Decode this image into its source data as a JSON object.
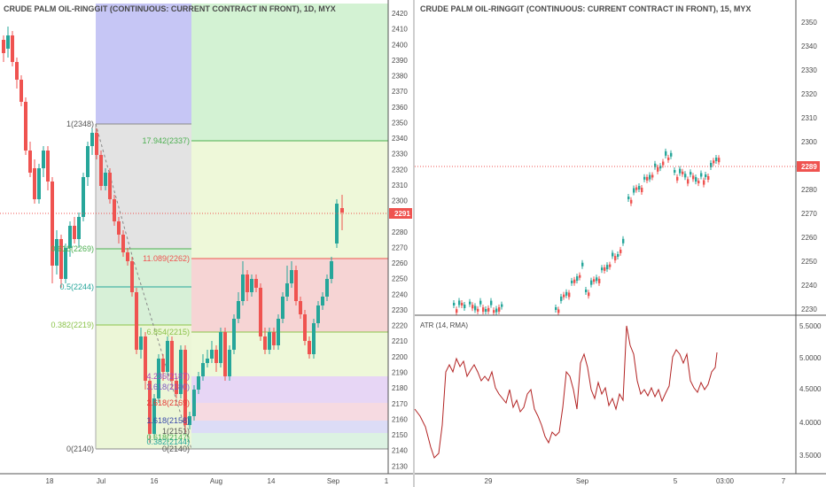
{
  "left_chart": {
    "title": "CRUDE PALM OIL-RINGGIT (CONTINUOUS: CURRENT CONTRACT IN FRONT), 1D, MYX",
    "y_ticks": [
      "2420",
      "2410",
      "2400",
      "2390",
      "2380",
      "2370",
      "2360",
      "2350",
      "2340",
      "2330",
      "2320",
      "2310",
      "2300",
      "2290",
      "2280",
      "2270",
      "2260",
      "2250",
      "2240",
      "2230",
      "2220",
      "2210",
      "2200",
      "2190",
      "2180",
      "2170",
      "2160",
      "2150",
      "2140",
      "2130"
    ],
    "x_ticks": [
      "18",
      "Jul",
      "16",
      "Aug",
      "14",
      "Sep",
      "1"
    ],
    "price_badge": "2291",
    "fib_left": [
      "1(2348)",
      "0.618(2269)",
      "0.5(2244)",
      "0.382(2219)",
      "0(2140)"
    ],
    "fib_right": [
      "17.942(2337)",
      "11.089(2262)",
      "6.854(2215)",
      "4.236(2187)",
      "3.618(2180)",
      "2.618(2169)",
      "1.618(2158)",
      "1(2151)",
      "0.618(2147)",
      "0.382(2144)",
      "0(2140)"
    ]
  },
  "right_chart": {
    "title": "CRUDE PALM OIL-RINGGIT (CONTINUOUS: CURRENT CONTRACT IN FRONT), 15, MYX",
    "y_ticks": [
      "2350",
      "2340",
      "2330",
      "2320",
      "2310",
      "2300",
      "2290",
      "2280",
      "2270",
      "2260",
      "2250",
      "2240",
      "2230"
    ],
    "price_badge": "2289",
    "indicator_title": "ATR (14, RMA)",
    "atr_ticks": [
      "5.5000",
      "5.0000",
      "4.5000",
      "4.0000",
      "3.5000"
    ],
    "x_ticks": [
      "29",
      "Sep",
      "5",
      "03:00",
      "7"
    ]
  },
  "colors": {
    "up": "#26a69a",
    "down": "#ef5350",
    "atr": "#b22222"
  }
}
